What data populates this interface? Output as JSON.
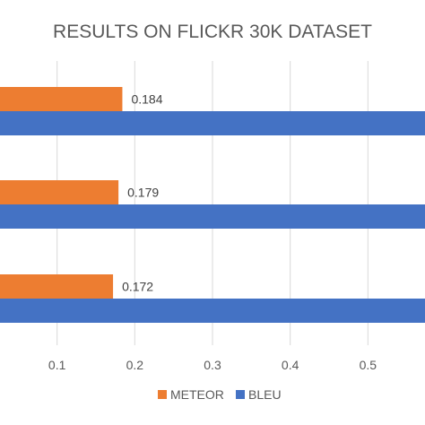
{
  "chart_data": {
    "type": "bar",
    "orientation": "horizontal",
    "title": "RESULTS ON FLICKR 30K DATASET",
    "xlabel": "",
    "ylabel": "",
    "xlim": [
      0,
      0.6
    ],
    "x_ticks": [
      "0.1",
      "0.2",
      "0.3",
      "0.4",
      "0.5"
    ],
    "x_tick_values": [
      0.1,
      0.2,
      0.3,
      0.4,
      0.5
    ],
    "categories": [
      "",
      "",
      ""
    ],
    "series": [
      {
        "name": "METEOR",
        "color": "#ED7D31",
        "values": [
          0.184,
          0.179,
          0.172
        ],
        "labels": [
          "0.184",
          "0.179",
          "0.172"
        ]
      },
      {
        "name": "BLEU",
        "color": "#4472C4",
        "values": [
          0.6,
          0.6,
          0.6
        ]
      }
    ],
    "grid": true,
    "legend": "bottom"
  }
}
